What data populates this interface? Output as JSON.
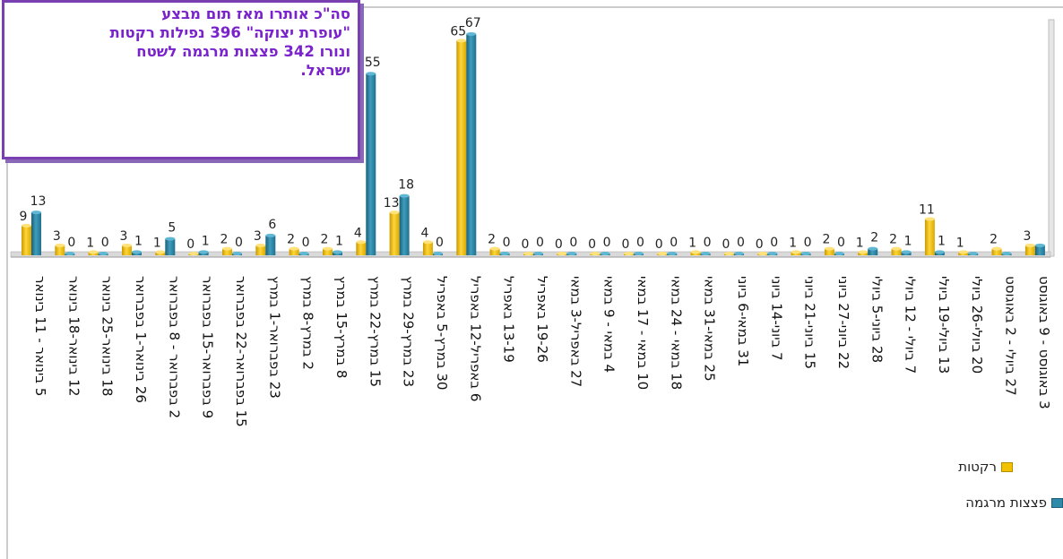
{
  "callout": {
    "lines": [
      "סה\"כ אותרו מאז תום מבצע",
      "\"עופרת יצוקה\" 396 נפילות רקטות",
      "ונורו 342 פצצות מרגמה לשטח",
      "ישראל."
    ]
  },
  "colors": {
    "rockets": "#f2c200",
    "mortars": "#2e8aa8",
    "frame": "#7a3fb0",
    "callout_text": "#7a22cc"
  },
  "chart_data": {
    "type": "bar",
    "categories": [
      "5 בינואר - 11 בינואר",
      "12 בינואר-18 בינואר",
      "18 בינואר-25 בינואר",
      "26 בינואר-1 בפברואר",
      "2 בפברואר - 8 בפברואר",
      "9 בפברואר-15 בפברואר",
      "15 בפברואר-22 בפברואר",
      "23 בפברואר-1 במרץ",
      "2 במרץ-8 במרץ",
      "8 במרץ-15 במרץ",
      "15 במרץ-22 במרץ",
      "23 במרץ-29 במרץ",
      "30 במרץ-5 באפריל",
      "6 באפריל-12 באפריל",
      "13-19 באפריל",
      "19-26 באפריל",
      "27 באפריל-3 במאי",
      "4 במאי - 9 במאי",
      "10 במאי - 17 במאי",
      "18 במאי - 24 במאי",
      "25 במאי-31 במאי",
      "31 במאי-6 ביוני",
      "7 ביוני-14 ביוני",
      "15 ביוני-21 ביוני",
      "22 ביוני-27 ביוני",
      "28 ביוני-5 ביולי",
      "7 ביולי - 12 ביולי",
      "13 ביולי-19 ביולי",
      "20 ביולי-26 ביולי",
      "27 ביולי - 2 באוגוסט",
      "3 באוגוסט - 9 באוגוסט"
    ],
    "series": [
      {
        "name": "רקטות",
        "color": "#f2c200",
        "values": [
          9,
          3,
          1,
          3,
          1,
          0,
          2,
          3,
          2,
          2,
          4,
          13,
          4,
          65,
          2,
          0,
          0,
          0,
          0,
          0,
          1,
          0,
          0,
          1,
          2,
          1,
          2,
          11,
          1,
          2,
          3
        ],
        "labels": [
          "9",
          "3",
          "1",
          "3",
          "1",
          "0",
          "2",
          "3",
          "2",
          "2",
          "4",
          "13",
          "4",
          "65",
          "2",
          "0",
          "0",
          "0",
          "0",
          "0",
          "1",
          "0",
          "0",
          "1",
          "2",
          "1",
          "2",
          "11",
          "1",
          "2",
          "3"
        ]
      },
      {
        "name": "פצצות מרגמה",
        "color": "#2e8aa8",
        "values": [
          13,
          0,
          0,
          1,
          5,
          1,
          0,
          6,
          0,
          1,
          55,
          18,
          0,
          67,
          0,
          0,
          0,
          0,
          0,
          0,
          0,
          0,
          0,
          0,
          0,
          2,
          1,
          1,
          0,
          0,
          3
        ],
        "labels": [
          "13",
          "0",
          "0",
          "1",
          "5",
          "1",
          "0",
          "6",
          "0",
          "1",
          "55",
          "18",
          "0",
          "67",
          "0",
          "0",
          "0",
          "0",
          "0",
          "0",
          "0",
          "0",
          "0",
          "0",
          "0",
          "2",
          "1",
          "1",
          "",
          "",
          ""
        ]
      }
    ],
    "ylim": [
      0,
      70
    ],
    "grid": false,
    "legend": "bottom-right"
  }
}
